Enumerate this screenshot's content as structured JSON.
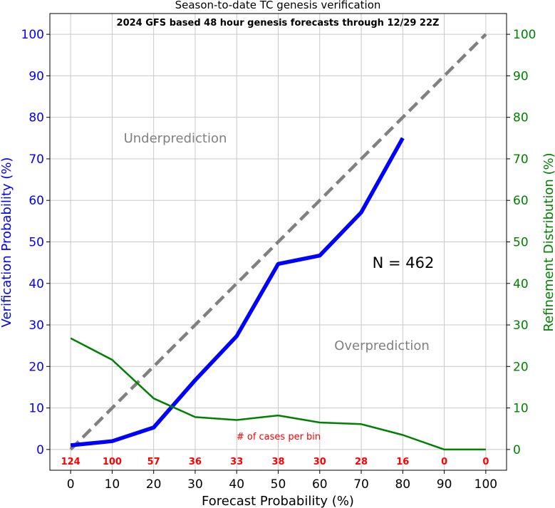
{
  "chart_data": {
    "type": "line",
    "title": "Season-to-date TC genesis verification",
    "subtitle": "2024 GFS based 48 hour genesis forecasts through 12/29 22Z",
    "xlabel": "Forecast Probability (%)",
    "ylabel_left": "Verification Probability (%)",
    "ylabel_right": "Refinement Distribution (%)",
    "xlim": [
      -5,
      105
    ],
    "ylim": [
      -5,
      105
    ],
    "x_ticks": [
      0,
      10,
      20,
      30,
      40,
      50,
      60,
      70,
      80,
      90,
      100
    ],
    "y_ticks": [
      0,
      10,
      20,
      30,
      40,
      50,
      60,
      70,
      80,
      90,
      100
    ],
    "grid": true,
    "series": [
      {
        "role": "perfect-reliability",
        "color": "#808080",
        "style": "dashed",
        "x": [
          0,
          100
        ],
        "y": [
          0,
          100
        ]
      },
      {
        "role": "verification",
        "color": "#0000ff",
        "axis": "left",
        "x": [
          0,
          10,
          20,
          30,
          40,
          50,
          60,
          70,
          80
        ],
        "y": [
          1,
          2,
          5.3,
          16.7,
          27.3,
          44.7,
          46.7,
          57.1,
          75
        ]
      },
      {
        "role": "refinement",
        "color": "#008000",
        "axis": "right",
        "x": [
          0,
          10,
          20,
          30,
          40,
          50,
          60,
          70,
          80,
          90,
          100
        ],
        "y": [
          26.8,
          21.6,
          12.3,
          7.8,
          7.1,
          8.2,
          6.5,
          6.1,
          3.5,
          0,
          0
        ]
      }
    ],
    "case_counts": {
      "label": "# of cases per bin",
      "color": "#ff0000",
      "x": [
        0,
        10,
        20,
        30,
        40,
        50,
        60,
        70,
        80,
        90,
        100
      ],
      "values": [
        "124",
        "100",
        "57",
        "36",
        "33",
        "38",
        "30",
        "28",
        "16",
        "0",
        "0"
      ]
    },
    "annotations": {
      "underprediction": "Underprediction",
      "overprediction": "Overprediction",
      "n_label": "N = 462"
    }
  }
}
